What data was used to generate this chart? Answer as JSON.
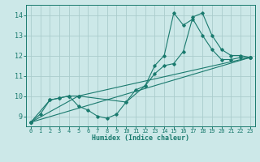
{
  "title": "",
  "xlabel": "Humidex (Indice chaleur)",
  "bg_color": "#cce8e8",
  "grid_color": "#aacccc",
  "line_color": "#1a7a6e",
  "xlim": [
    -0.5,
    23.5
  ],
  "ylim": [
    8.5,
    14.5
  ],
  "xticks": [
    0,
    1,
    2,
    3,
    4,
    5,
    6,
    7,
    8,
    9,
    10,
    11,
    12,
    13,
    14,
    15,
    16,
    17,
    18,
    19,
    20,
    21,
    22,
    23
  ],
  "yticks": [
    9,
    10,
    11,
    12,
    13,
    14
  ],
  "series": [
    {
      "x": [
        0,
        1,
        2,
        3,
        4,
        5,
        6,
        7,
        8,
        9,
        10,
        11,
        12,
        13,
        14,
        15,
        16,
        17,
        18,
        19,
        20,
        21,
        22,
        23
      ],
      "y": [
        8.7,
        9.1,
        9.8,
        9.9,
        10.0,
        9.5,
        9.3,
        9.0,
        8.9,
        9.1,
        9.7,
        10.3,
        10.5,
        11.5,
        12.0,
        14.1,
        13.5,
        13.8,
        13.0,
        12.3,
        11.8,
        11.8,
        11.9,
        11.9
      ]
    },
    {
      "x": [
        0,
        2,
        3,
        4,
        5,
        10,
        12,
        13,
        14,
        15,
        16,
        17,
        18,
        19,
        20,
        21,
        22,
        23
      ],
      "y": [
        8.7,
        9.8,
        9.9,
        10.0,
        10.0,
        9.7,
        10.5,
        11.1,
        11.5,
        11.6,
        12.2,
        13.9,
        14.1,
        13.0,
        12.3,
        12.0,
        12.0,
        11.9
      ]
    },
    {
      "x": [
        0,
        23
      ],
      "y": [
        8.7,
        11.9
      ]
    },
    {
      "x": [
        0,
        5,
        23
      ],
      "y": [
        8.7,
        10.0,
        11.9
      ]
    }
  ]
}
